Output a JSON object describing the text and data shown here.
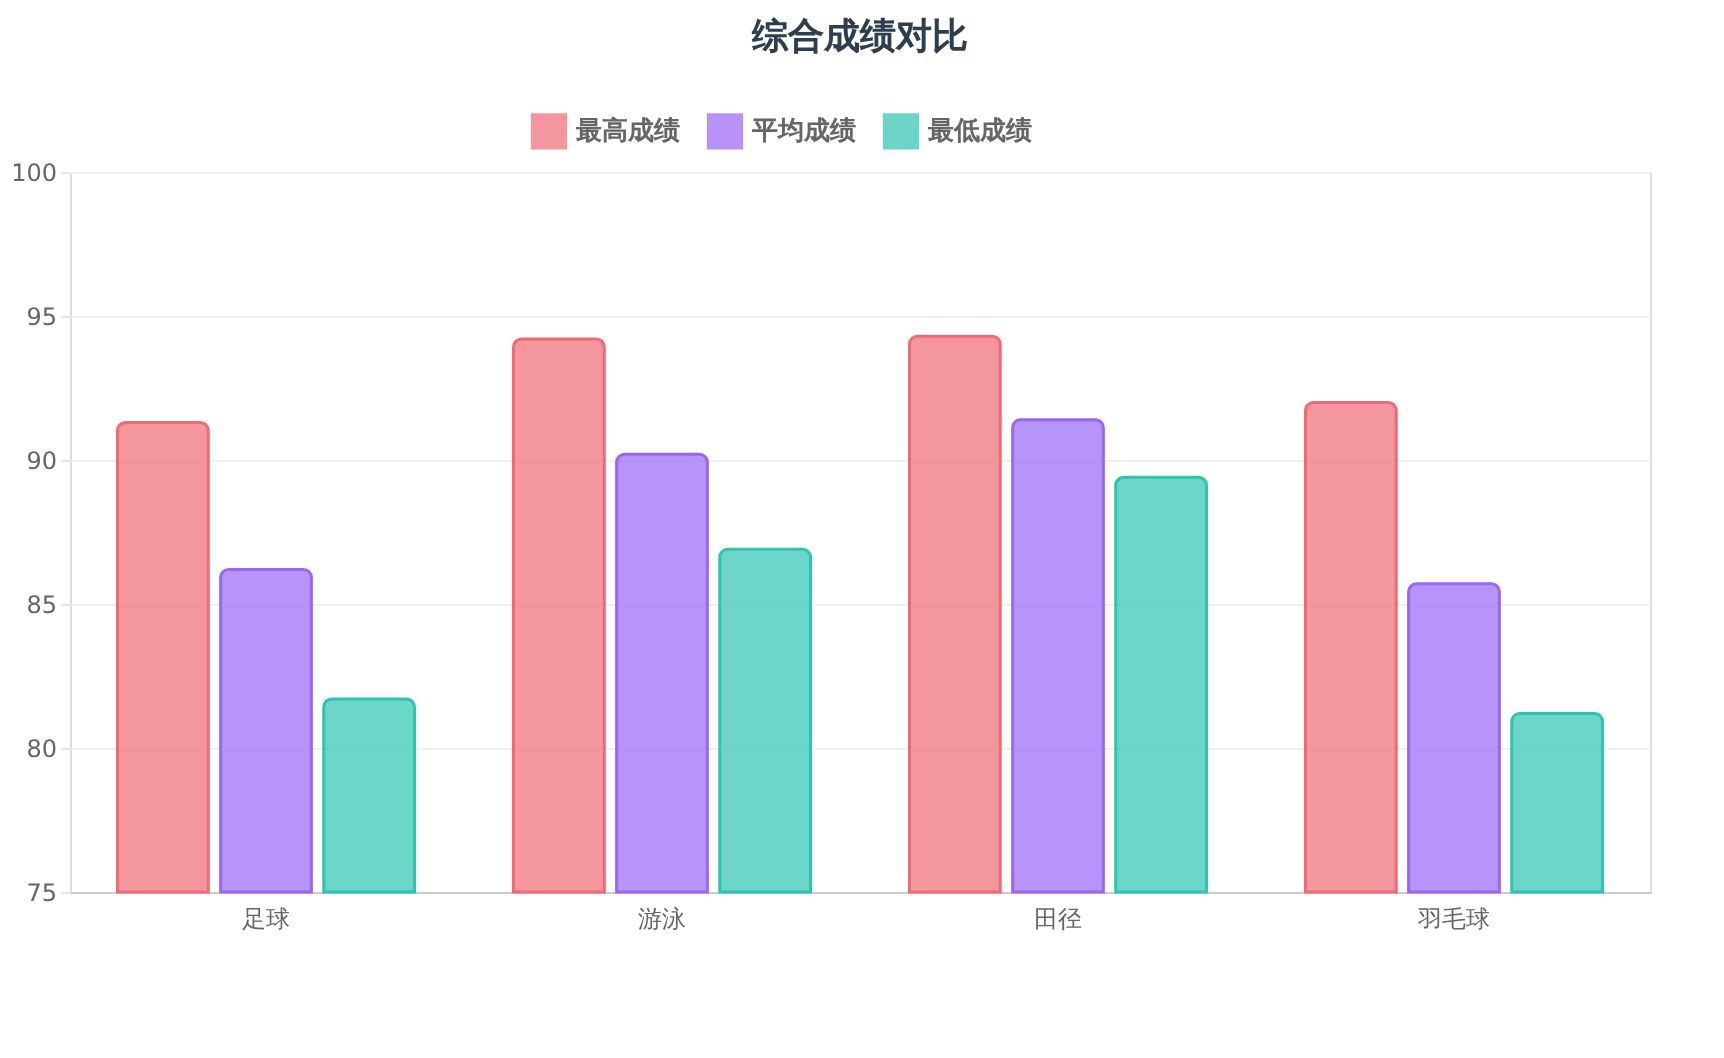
{
  "chart_data": {
    "type": "bar",
    "title": "综合成绩对比",
    "categories": [
      "足球",
      "游泳",
      "田径",
      "羽毛球"
    ],
    "series": [
      {
        "name": "最高成绩",
        "color": "#f06a74",
        "values": [
          91.3,
          94.2,
          94.3,
          92.0
        ]
      },
      {
        "name": "平均成绩",
        "color": "#9966f6",
        "values": [
          86.2,
          90.2,
          91.4,
          85.7
        ]
      },
      {
        "name": "最低成绩",
        "color": "#2ec4b0",
        "values": [
          81.7,
          86.9,
          89.4,
          81.2
        ]
      }
    ],
    "ylim": [
      75,
      100
    ],
    "yticks": [
      75,
      80,
      85,
      90,
      95,
      100
    ],
    "grid": "y",
    "legend": "top"
  }
}
